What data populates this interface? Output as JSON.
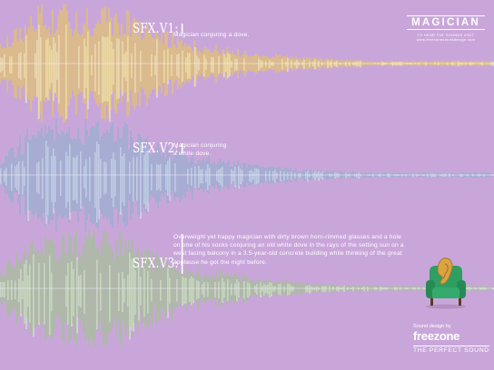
{
  "brand": {
    "title": "MAGICIAN",
    "subtitle_line1": "TO HEAR THE SOUNDS VISIT",
    "subtitle_line2": "www.freezonesounddesign.com"
  },
  "ads": [
    {
      "label": "SFX.V1:",
      "text": "Magician conjuring a dove.",
      "wave_color": "#e6c95a"
    },
    {
      "label": "SFX.V2:",
      "text": "Magician conjuring a white dove.",
      "wave_color": "#8fb0cc"
    },
    {
      "label": "SFX.V3:",
      "text": "Overweight yet happy magician with dirty brown horn-rimmed glasses and a hole on one of his socks conjuring an old white dove in the rays of the setting sun on a west facing balcony in a 3.5-year-old concrete building while thinking of the great applause he got the night before.",
      "wave_color": "#9ec48a"
    }
  ],
  "credit": {
    "line": "Sound design by",
    "name": "freezone"
  },
  "tagline": "THE PERFECT SOUND",
  "colors": {
    "background": "#c9a6da",
    "white_wave": "#f4eefa",
    "chair": "#2f9e63",
    "ear": "#d9a441"
  }
}
